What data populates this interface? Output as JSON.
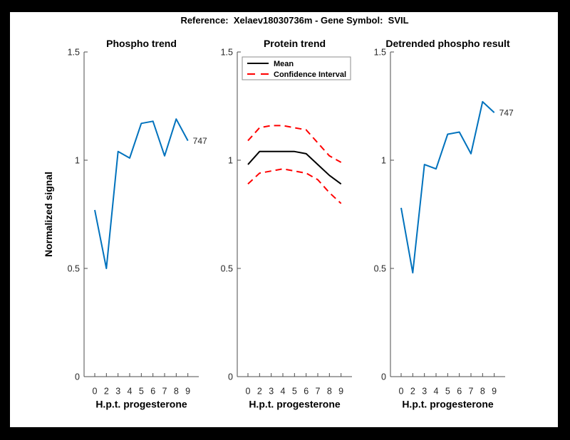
{
  "window": {
    "frame_color": "#000000",
    "canvas_color": "#ffffff"
  },
  "header": {
    "title": "Reference:  Xelaev18030736m - Gene Symbol:  SVIL"
  },
  "colors": {
    "line_blue": "#0072BD",
    "ci_red": "#FF0000",
    "mean_black": "#000000",
    "axis": "#4d4d4d",
    "tick_text": "#262626",
    "legend_border": "#8c8c8c"
  },
  "chart_data": [
    {
      "type": "line",
      "title": "Phospho trend",
      "xlabel": "H.p.t. progesterone",
      "ylabel": "Normalized signal",
      "categories": [
        "0",
        "2",
        "3",
        "4",
        "5",
        "6",
        "7",
        "8",
        "9"
      ],
      "yticks": [
        0,
        0.5,
        1,
        1.5
      ],
      "ylim": [
        0,
        1.5
      ],
      "grid": false,
      "legend": null,
      "series": [
        {
          "name": "phospho 747",
          "color": "#0072BD",
          "style": "solid",
          "end_label": "747",
          "values": [
            0.77,
            0.5,
            1.04,
            1.01,
            1.17,
            1.18,
            1.02,
            1.19,
            1.09
          ]
        }
      ]
    },
    {
      "type": "line",
      "title": "Protein trend",
      "xlabel": "H.p.t. progesterone",
      "ylabel": "",
      "categories": [
        "0",
        "2",
        "3",
        "4",
        "5",
        "6",
        "7",
        "8",
        "9"
      ],
      "yticks": [
        0,
        0.5,
        1,
        1.5
      ],
      "ylim": [
        0,
        1.5
      ],
      "grid": false,
      "legend": {
        "position": "northwest",
        "entries": [
          {
            "label": "Mean",
            "color": "#000000",
            "style": "solid"
          },
          {
            "label": "Confidence Interval",
            "color": "#FF0000",
            "style": "dashed"
          }
        ]
      },
      "series": [
        {
          "name": "Mean",
          "color": "#000000",
          "style": "solid",
          "end_label": null,
          "values": [
            0.98,
            1.04,
            1.04,
            1.04,
            1.04,
            1.03,
            0.98,
            0.93,
            0.89
          ]
        },
        {
          "name": "Confidence Interval upper",
          "color": "#FF0000",
          "style": "dashed",
          "end_label": null,
          "values": [
            1.09,
            1.15,
            1.16,
            1.16,
            1.15,
            1.14,
            1.08,
            1.02,
            0.99
          ]
        },
        {
          "name": "Confidence Interval lower",
          "color": "#FF0000",
          "style": "dashed",
          "end_label": null,
          "values": [
            0.89,
            0.94,
            0.95,
            0.96,
            0.95,
            0.94,
            0.91,
            0.85,
            0.8
          ]
        }
      ]
    },
    {
      "type": "line",
      "title": "Detrended phospho result",
      "xlabel": "H.p.t. progesterone",
      "ylabel": "",
      "categories": [
        "0",
        "2",
        "3",
        "4",
        "5",
        "6",
        "7",
        "8",
        "9"
      ],
      "yticks": [
        0,
        0.5,
        1,
        1.5
      ],
      "ylim": [
        0,
        1.5
      ],
      "grid": false,
      "legend": null,
      "series": [
        {
          "name": "detrended phospho 747",
          "color": "#0072BD",
          "style": "solid",
          "end_label": "747",
          "values": [
            0.78,
            0.48,
            0.98,
            0.96,
            1.12,
            1.13,
            1.03,
            1.27,
            1.22
          ]
        }
      ]
    }
  ]
}
